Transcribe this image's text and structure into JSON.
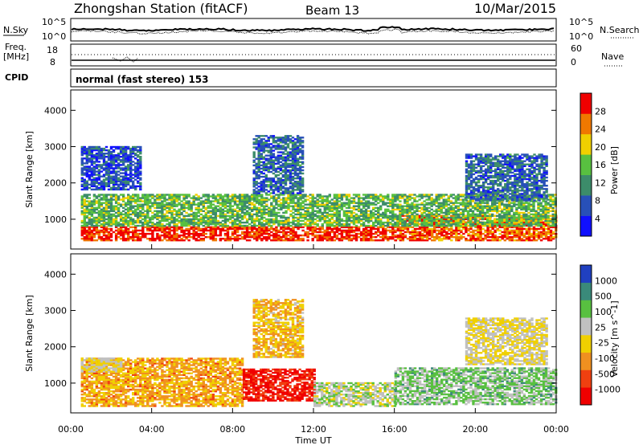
{
  "header": {
    "station": "Zhongshan Station (fitACF)",
    "beam": "Beam 13",
    "date": "10/Mar/2015"
  },
  "status_panel": {
    "nsky_label": "N.Sky",
    "nsearch_label": "N.Search",
    "noise_ticks_left": [
      "10^5",
      "10^0"
    ],
    "noise_ticks_right": [
      "10^5",
      "10^0"
    ],
    "freq_label": "Freq.",
    "freq_unit": "[MHz]",
    "freq_ticks": [
      "18",
      "8"
    ],
    "nave_label": "Nave",
    "nave_ticks": [
      "60",
      "0"
    ],
    "cpid_label": "CPID",
    "cpid_value": "normal (fast stereo) 153"
  },
  "colors": {
    "power_scale": [
      "#1010ff",
      "#2850b8",
      "#3c8c6a",
      "#58c040",
      "#f0d000",
      "#f07800",
      "#f00000"
    ],
    "velocity_scale": [
      "#2040c0",
      "#3a8a7a",
      "#58c040",
      "#c0c0c0",
      "#f0d000",
      "#f09020",
      "#f04010",
      "#f00000"
    ]
  },
  "chart_data": [
    {
      "type": "heatmap",
      "panel": "power",
      "ylabel": "Slant Range [km]",
      "xlabel": "Time UT",
      "x_ticks": [
        "00:00",
        "04:00",
        "08:00",
        "12:00",
        "16:00",
        "20:00",
        "00:00"
      ],
      "y_ticks": [
        1000,
        2000,
        3000,
        4000
      ],
      "xlim_hours": [
        0,
        24
      ],
      "ylim_km": [
        180,
        4560
      ],
      "colorbar": {
        "label": "Power [dB]",
        "ticks": [
          "4",
          "8",
          "12",
          "16",
          "20",
          "24",
          "28"
        ],
        "range": [
          0,
          30
        ]
      },
      "regions": [
        {
          "t": [
            0.5,
            16.0
          ],
          "r": [
            400,
            800
          ],
          "value": 27
        },
        {
          "t": [
            16.0,
            24.0
          ],
          "r": [
            400,
            1100
          ],
          "value": 25
        },
        {
          "t": [
            0.5,
            24.0
          ],
          "r": [
            800,
            1700
          ],
          "value": 14
        },
        {
          "t": [
            9.0,
            11.5
          ],
          "r": [
            1700,
            3300
          ],
          "value": 8
        },
        {
          "t": [
            19.5,
            23.5
          ],
          "r": [
            1500,
            2800
          ],
          "value": 8
        },
        {
          "t": [
            0.5,
            3.5
          ],
          "r": [
            1800,
            3000
          ],
          "value": 6
        }
      ]
    },
    {
      "type": "heatmap",
      "panel": "velocity",
      "ylabel": "Slant Range [km]",
      "xlabel": "Time UT",
      "x_ticks": [
        "00:00",
        "04:00",
        "08:00",
        "12:00",
        "16:00",
        "20:00",
        "00:00"
      ],
      "y_ticks": [
        1000,
        2000,
        3000,
        4000
      ],
      "xlim_hours": [
        0,
        24
      ],
      "ylim_km": [
        180,
        4560
      ],
      "colorbar": {
        "label": "Velocity [m s^-1]",
        "ticks": [
          "1000",
          "500",
          "100",
          "25",
          "-25",
          "-100",
          "-500",
          "-1000"
        ],
        "range": [
          -1000,
          1000
        ]
      },
      "regions": [
        {
          "t": [
            0.5,
            8.5
          ],
          "r": [
            350,
            1700
          ],
          "value": -300
        },
        {
          "t": [
            8.5,
            12.0
          ],
          "r": [
            500,
            1400
          ],
          "value": -800
        },
        {
          "t": [
            12.0,
            16.0
          ],
          "r": [
            350,
            1000
          ],
          "value": 150
        },
        {
          "t": [
            16.0,
            24.0
          ],
          "r": [
            400,
            1400
          ],
          "value": 300
        },
        {
          "t": [
            0.5,
            2.5
          ],
          "r": [
            1300,
            1700
          ],
          "value": 0
        },
        {
          "t": [
            9.0,
            11.5
          ],
          "r": [
            1700,
            3300
          ],
          "value": -200
        },
        {
          "t": [
            19.5,
            23.5
          ],
          "r": [
            1500,
            2800
          ],
          "value": 0
        }
      ]
    }
  ]
}
